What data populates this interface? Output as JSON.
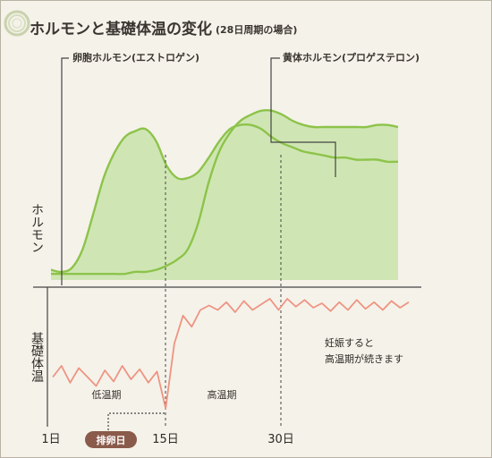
{
  "title": "ホルモンと基礎体温の変化",
  "subtitle": "(28日周期の場合)",
  "colors": {
    "hormone_line": "#8dc34a",
    "hormone_fill": "#cfe6b4",
    "temp_line": "#ee9482",
    "axis": "#444444",
    "badge": "#8a5a4a",
    "logo_ring": "#c4cfa8"
  },
  "chart_data": [
    {
      "type": "area",
      "ylabel": "ホルモン",
      "xlim": [
        1,
        34
      ],
      "series": [
        {
          "name": "卵胞ホルモン(エストロゲン)",
          "x": [
            1,
            2,
            3,
            4,
            5,
            6,
            7,
            8,
            9,
            10,
            11,
            12,
            13,
            14,
            15,
            16,
            17,
            18,
            19,
            20,
            21,
            22,
            23,
            24,
            25,
            26,
            27,
            28,
            29,
            30,
            31,
            32,
            33,
            34
          ],
          "values": [
            0.05,
            0.04,
            0.06,
            0.15,
            0.32,
            0.5,
            0.62,
            0.7,
            0.73,
            0.74,
            0.68,
            0.56,
            0.5,
            0.5,
            0.53,
            0.6,
            0.68,
            0.74,
            0.76,
            0.76,
            0.74,
            0.7,
            0.67,
            0.65,
            0.63,
            0.62,
            0.61,
            0.6,
            0.6,
            0.59,
            0.59,
            0.59,
            0.58,
            0.58
          ]
        },
        {
          "name": "黄体ホルモン(プロゲステロン)",
          "x": [
            1,
            2,
            3,
            4,
            5,
            6,
            7,
            8,
            9,
            10,
            11,
            12,
            13,
            14,
            15,
            16,
            17,
            18,
            19,
            20,
            21,
            22,
            23,
            24,
            25,
            26,
            27,
            28,
            29,
            30,
            31,
            32,
            33,
            34
          ],
          "values": [
            0.03,
            0.03,
            0.03,
            0.03,
            0.03,
            0.03,
            0.03,
            0.03,
            0.04,
            0.04,
            0.05,
            0.07,
            0.1,
            0.15,
            0.28,
            0.48,
            0.63,
            0.72,
            0.78,
            0.81,
            0.83,
            0.83,
            0.81,
            0.78,
            0.76,
            0.75,
            0.75,
            0.75,
            0.75,
            0.75,
            0.75,
            0.76,
            0.76,
            0.75
          ]
        }
      ],
      "annotations": [
        "卵胞ホルモン(エストロゲン)",
        "黄体ホルモン(プロゲステロン)"
      ]
    },
    {
      "type": "line",
      "ylabel": "基礎体温",
      "x": [
        1,
        2,
        3,
        4,
        5,
        6,
        7,
        8,
        9,
        10,
        11,
        12,
        13,
        14,
        15,
        16,
        17,
        18,
        19,
        20,
        21,
        22,
        23,
        24,
        25,
        26,
        27,
        28,
        29,
        30,
        31,
        32,
        33,
        34,
        35,
        36,
        37,
        38,
        39,
        40,
        41,
        42
      ],
      "series": [
        {
          "values": [
            0.3,
            0.4,
            0.25,
            0.38,
            0.3,
            0.22,
            0.36,
            0.26,
            0.4,
            0.28,
            0.37,
            0.25,
            0.35,
            0.02,
            0.6,
            0.85,
            0.75,
            0.9,
            0.94,
            0.9,
            0.97,
            0.88,
            0.98,
            0.9,
            0.95,
            1.0,
            0.9,
            1.0,
            0.93,
            0.99,
            0.92,
            0.96,
            0.89,
            0.97,
            0.9,
            0.99,
            0.91,
            0.97,
            0.9,
            0.98,
            0.92,
            0.97
          ]
        }
      ],
      "annotations": [
        "低温期",
        "高温期",
        "妊娠すると",
        "高温期が続きます"
      ]
    }
  ],
  "axis": {
    "x_ticks": [
      "1日",
      "15日",
      "30日"
    ],
    "ovulation_label": "排卵日"
  }
}
